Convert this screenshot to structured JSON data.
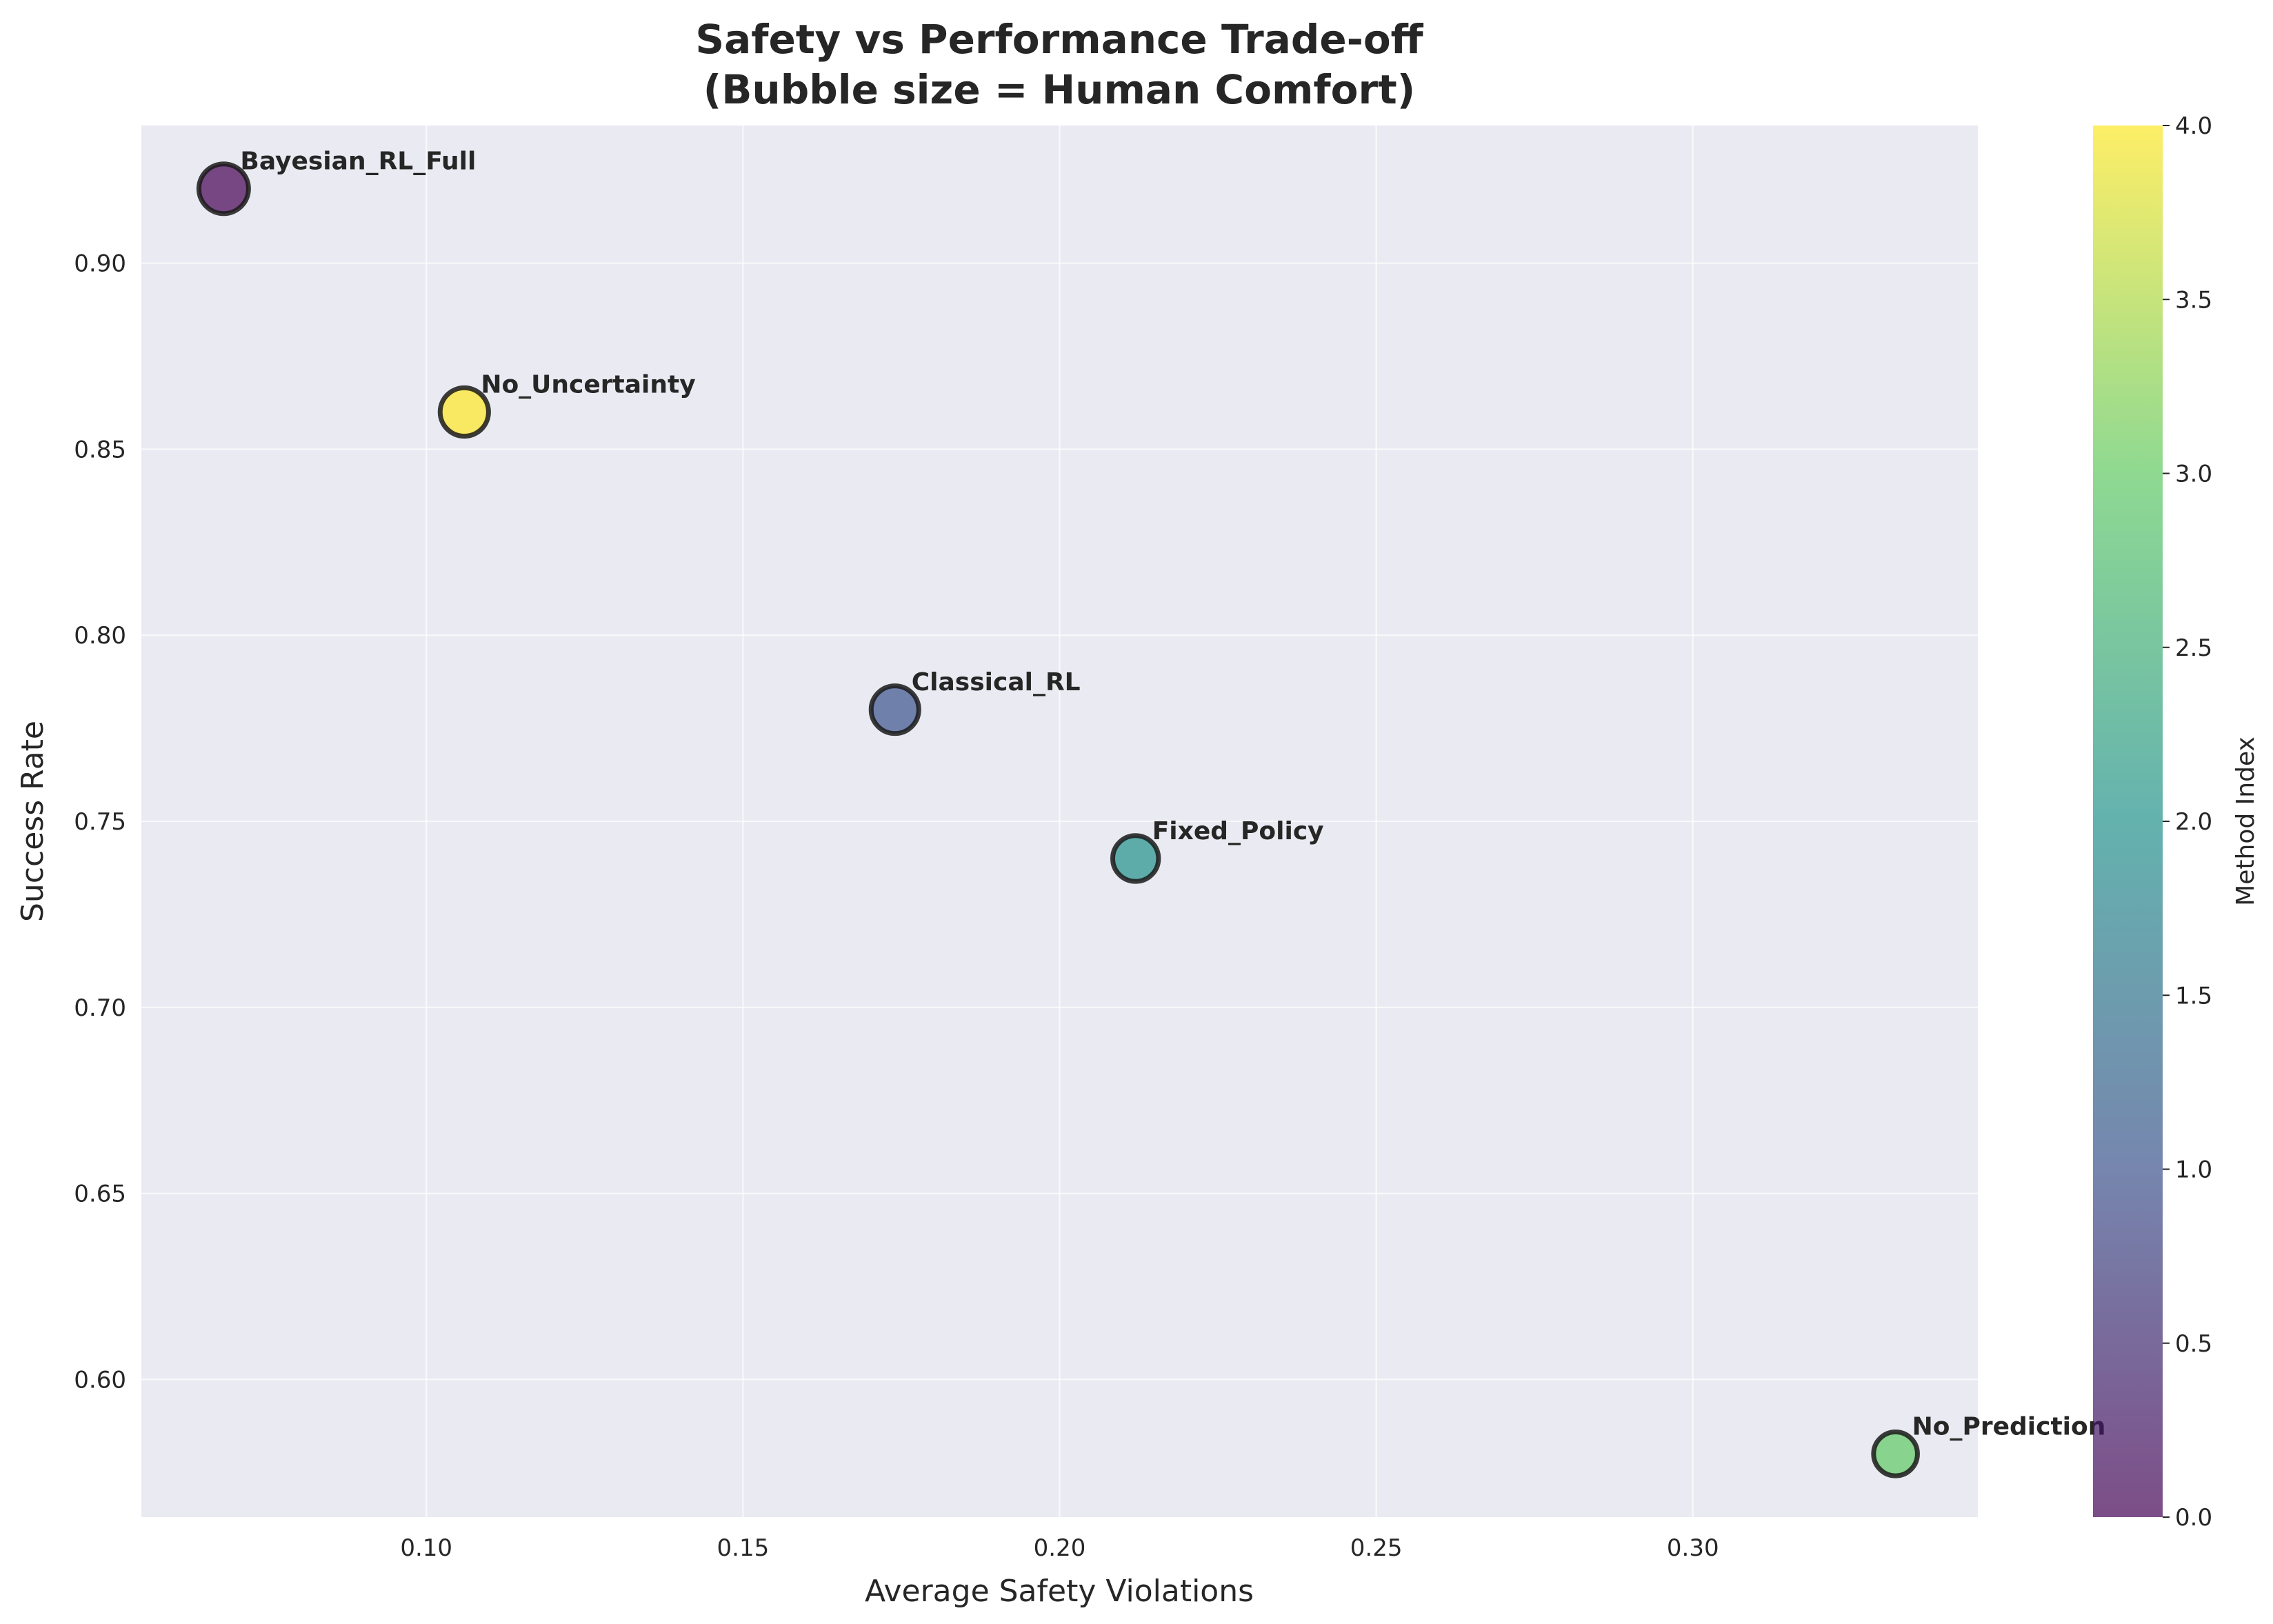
{
  "chart_data": {
    "type": "scatter",
    "title": "Safety vs Performance Trade-off",
    "subtitle": "(Bubble size = Human Comfort)",
    "xlabel": "Average Safety Violations",
    "ylabel": "Success Rate",
    "xlim": [
      0.055,
      0.345
    ],
    "ylim": [
      0.563,
      0.937
    ],
    "xticks": [
      0.1,
      0.15,
      0.2,
      0.25,
      0.3
    ],
    "xtick_labels": [
      "0.10",
      "0.15",
      "0.20",
      "0.25",
      "0.30"
    ],
    "yticks": [
      0.6,
      0.65,
      0.7,
      0.75,
      0.8,
      0.85,
      0.9
    ],
    "ytick_labels": [
      "0.60",
      "0.65",
      "0.70",
      "0.75",
      "0.80",
      "0.85",
      "0.90"
    ],
    "grid": true,
    "points": [
      {
        "label": "Bayesian_RL_Full",
        "x": 0.068,
        "y": 0.92,
        "method_index": 0,
        "size": 1.0
      },
      {
        "label": "Classical_RL",
        "x": 0.174,
        "y": 0.78,
        "method_index": 1,
        "size": 0.92
      },
      {
        "label": "Fixed_Policy",
        "x": 0.212,
        "y": 0.74,
        "method_index": 2,
        "size": 0.85
      },
      {
        "label": "No_Prediction",
        "x": 0.332,
        "y": 0.58,
        "method_index": 3,
        "size": 0.78
      },
      {
        "label": "No_Uncertainty",
        "x": 0.106,
        "y": 0.86,
        "method_index": 4,
        "size": 0.95
      }
    ],
    "colorbar": {
      "label": "Method Index",
      "colormap": "viridis",
      "range": [
        0,
        4
      ],
      "ticks": [
        0.0,
        0.5,
        1.0,
        1.5,
        2.0,
        2.5,
        3.0,
        3.5,
        4.0
      ],
      "tick_labels": [
        "0.0",
        "0.5",
        "1.0",
        "1.5",
        "2.0",
        "2.5",
        "3.0",
        "3.5",
        "4.0"
      ]
    },
    "colors": {
      "plot_background": "#eaeaf2",
      "marker_edge": "#1a1a1a",
      "viridis_stops": [
        "#440154",
        "#3b528b",
        "#21918c",
        "#5ec962",
        "#fde725"
      ]
    }
  }
}
